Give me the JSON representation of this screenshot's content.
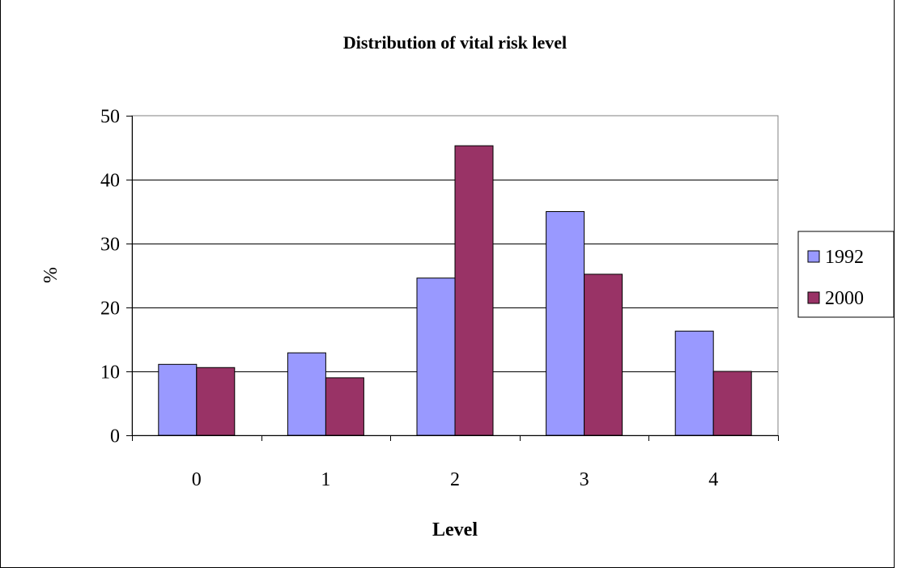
{
  "chart_data": {
    "type": "bar",
    "title": "Distribution of vital risk level",
    "xlabel": "Level",
    "ylabel": "%",
    "categories": [
      "0",
      "1",
      "2",
      "3",
      "4"
    ],
    "series": [
      {
        "name": "1992",
        "values": [
          11.1,
          12.9,
          24.6,
          35.0,
          16.3
        ],
        "color": "#9999ff"
      },
      {
        "name": "2000",
        "values": [
          10.6,
          9.0,
          45.3,
          25.2,
          10.0
        ],
        "color": "#993366"
      }
    ],
    "ylim": [
      0,
      50
    ],
    "yticks": [
      "0",
      "10",
      "20",
      "30",
      "40",
      "50"
    ],
    "grid": true,
    "legend_position": "right"
  }
}
